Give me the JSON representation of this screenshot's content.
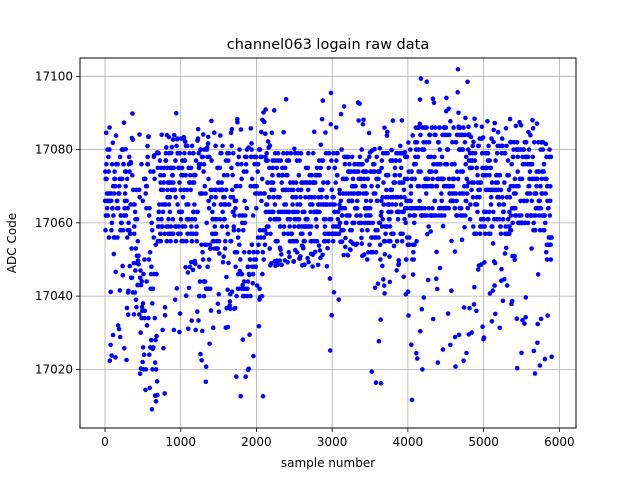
{
  "chart_data": {
    "type": "scatter",
    "title": "channel063 logain raw data",
    "xlabel": "sample number",
    "ylabel": "ADC Code",
    "xlim": [
      -330,
      6220
    ],
    "ylim": [
      17004,
      17105
    ],
    "xticks": [
      0,
      1000,
      2000,
      3000,
      4000,
      5000,
      6000
    ],
    "yticks": [
      17020,
      17040,
      17060,
      17080,
      17100
    ],
    "grid": true,
    "legend": "none",
    "marker_color": "#0000ff",
    "n_samples": 5900,
    "segments": [
      {
        "x_range": [
          0,
          330
        ],
        "main_band": [
          17056,
          17079
        ],
        "low_excursions": [
          17022,
          17052
        ],
        "outlier_max": 17089
      },
      {
        "x_range": [
          330,
          480
        ],
        "main_band": [
          17035,
          17072
        ],
        "low_excursions": [
          17007,
          17050
        ],
        "outlier_max": 17094
      },
      {
        "x_range": [
          480,
          680
        ],
        "main_band": [
          17020,
          17078
        ],
        "low_excursions": [
          17007,
          17048
        ],
        "outlier_max": 17084
      },
      {
        "x_range": [
          680,
          900
        ],
        "main_band": [
          17055,
          17079
        ],
        "low_excursions": [
          17007,
          17040
        ],
        "outlier_max": 17085
      },
      {
        "x_range": [
          900,
          1240
        ],
        "main_band": [
          17055,
          17082
        ],
        "low_excursions": [
          17030,
          17050
        ],
        "outlier_max": 17091
      },
      {
        "x_range": [
          1240,
          1390
        ],
        "main_band": [
          17040,
          17080
        ],
        "low_excursions": [
          17010,
          17042
        ],
        "outlier_max": 17087
      },
      {
        "x_range": [
          1390,
          1700
        ],
        "main_band": [
          17053,
          17080
        ],
        "low_excursions": [
          17030,
          17052
        ],
        "outlier_max": 17088
      },
      {
        "x_range": [
          1700,
          1930
        ],
        "main_band": [
          17040,
          17080
        ],
        "low_excursions": [
          17010,
          17050
        ],
        "outlier_max": 17089
      },
      {
        "x_range": [
          1930,
          2120
        ],
        "main_band": [
          17040,
          17080
        ],
        "low_excursions": [
          17008,
          17045
        ],
        "outlier_max": 17092
      },
      {
        "x_range": [
          2120,
          2950
        ],
        "main_band": [
          17055,
          17079
        ],
        "low_excursions": [
          17048,
          17054
        ],
        "outlier_max": 17094
      },
      {
        "x_range": [
          2950,
          3100
        ],
        "main_band": [
          17055,
          17079
        ],
        "low_excursions": [
          17020,
          17045
        ],
        "outlier_max": 17097
      },
      {
        "x_range": [
          3100,
          3450
        ],
        "main_band": [
          17058,
          17082
        ],
        "low_excursions": [
          17050,
          17056
        ],
        "outlier_max": 17093
      },
      {
        "x_range": [
          3450,
          3650
        ],
        "main_band": [
          17050,
          17077
        ],
        "low_excursions": [
          17009,
          17045
        ],
        "outlier_max": 17086
      },
      {
        "x_range": [
          3650,
          3960
        ],
        "main_band": [
          17055,
          17079
        ],
        "low_excursions": [
          17040,
          17054
        ],
        "outlier_max": 17089
      },
      {
        "x_range": [
          3960,
          4090
        ],
        "main_band": [
          17050,
          17079
        ],
        "low_excursions": [
          17004,
          17047
        ],
        "outlier_max": 17088
      },
      {
        "x_range": [
          4090,
          4800
        ],
        "main_band": [
          17062,
          17086
        ],
        "low_excursions": [
          17020,
          17060
        ],
        "outlier_max": 17102
      },
      {
        "x_range": [
          4800,
          5350
        ],
        "main_band": [
          17057,
          17082
        ],
        "low_excursions": [
          17028,
          17055
        ],
        "outlier_max": 17089
      },
      {
        "x_range": [
          5350,
          5800
        ],
        "main_band": [
          17058,
          17082
        ],
        "low_excursions": [
          17016,
          17055
        ],
        "outlier_max": 17094
      },
      {
        "x_range": [
          5800,
          5900
        ],
        "main_band": [
          17050,
          17080
        ],
        "low_excursions": [
          17009,
          17048
        ],
        "outlier_max": 17085
      }
    ]
  }
}
